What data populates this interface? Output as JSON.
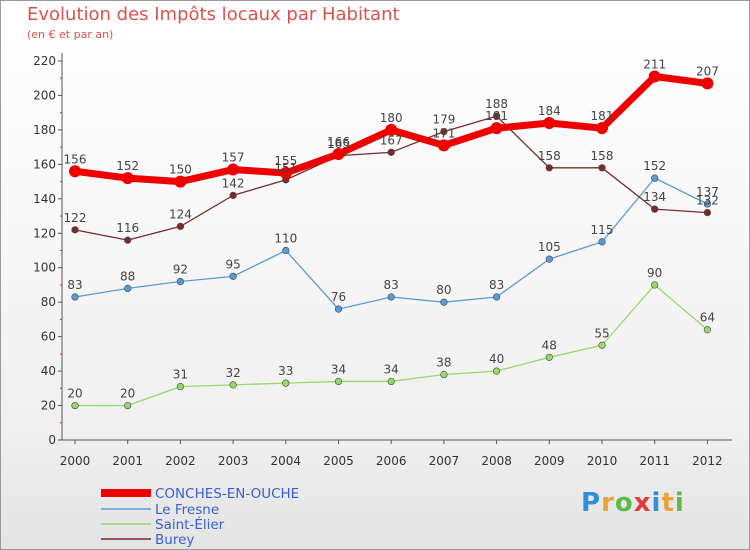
{
  "title": "Evolution des Impôts locaux par Habitant",
  "subtitle": "(en € et par an)",
  "logo": "Proxiti",
  "chart_data": {
    "type": "line",
    "title": "Evolution des Impôts locaux par Habitant",
    "subtitle": "(en € et par an)",
    "x": [
      "2000",
      "2001",
      "2002",
      "2003",
      "2004",
      "2005",
      "2006",
      "2007",
      "2008",
      "2009",
      "2010",
      "2011",
      "2012"
    ],
    "ylim": [
      0,
      220
    ],
    "yticks": [
      0,
      20,
      40,
      60,
      80,
      100,
      120,
      140,
      160,
      180,
      200,
      220
    ],
    "grid": false,
    "legend_position": "bottom-left",
    "series": [
      {
        "name": "CONCHES-EN-OUCHE",
        "color": "#ee0000",
        "values": [
          156,
          152,
          150,
          157,
          155,
          166,
          180,
          171,
          181,
          184,
          181,
          211,
          207
        ]
      },
      {
        "name": "Le Fresne",
        "color": "#5b9bd5",
        "values": [
          83,
          88,
          92,
          95,
          110,
          76,
          83,
          80,
          83,
          105,
          115,
          152,
          137
        ]
      },
      {
        "name": "Saint-Élier",
        "color": "#9ad86a",
        "values": [
          20,
          20,
          31,
          32,
          33,
          34,
          34,
          38,
          40,
          48,
          55,
          90,
          64
        ]
      },
      {
        "name": "Burey",
        "color": "#7a2a2a",
        "values": [
          122,
          116,
          124,
          142,
          151,
          165,
          167,
          179,
          188,
          158,
          158,
          134,
          132
        ]
      }
    ]
  }
}
